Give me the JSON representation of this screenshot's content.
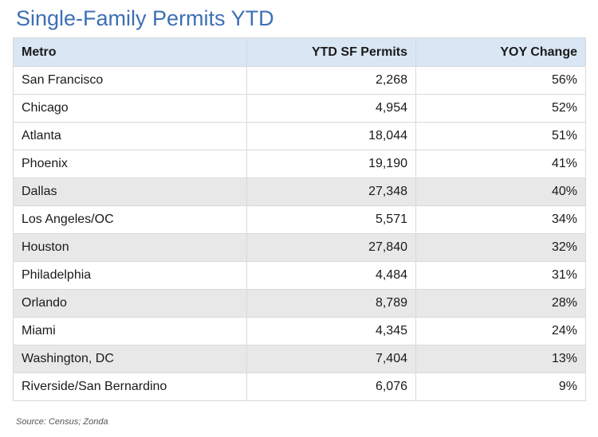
{
  "title": "Single-Family Permits YTD",
  "source": "Source: Census; Zonda",
  "colors": {
    "title": "#3d6fb6",
    "header_bg": "#d9e6f4",
    "shaded_row_bg": "#e8e8e8",
    "border": "#d9d9d9"
  },
  "chart_data": {
    "type": "table",
    "title": "Single-Family Permits YTD",
    "columns": [
      "Metro",
      "YTD SF Permits",
      "YOY Change"
    ],
    "rows": [
      {
        "metro": "San Francisco",
        "permits": "2,268",
        "yoy": "56%",
        "shaded": false
      },
      {
        "metro": "Chicago",
        "permits": "4,954",
        "yoy": "52%",
        "shaded": false
      },
      {
        "metro": "Atlanta",
        "permits": "18,044",
        "yoy": "51%",
        "shaded": false
      },
      {
        "metro": "Phoenix",
        "permits": "19,190",
        "yoy": "41%",
        "shaded": false
      },
      {
        "metro": "Dallas",
        "permits": "27,348",
        "yoy": "40%",
        "shaded": true
      },
      {
        "metro": "Los Angeles/OC",
        "permits": "5,571",
        "yoy": "34%",
        "shaded": false
      },
      {
        "metro": "Houston",
        "permits": "27,840",
        "yoy": "32%",
        "shaded": true
      },
      {
        "metro": "Philadelphia",
        "permits": "4,484",
        "yoy": "31%",
        "shaded": false
      },
      {
        "metro": "Orlando",
        "permits": "8,789",
        "yoy": "28%",
        "shaded": true
      },
      {
        "metro": "Miami",
        "permits": "4,345",
        "yoy": "24%",
        "shaded": false
      },
      {
        "metro": "Washington, DC",
        "permits": "7,404",
        "yoy": "13%",
        "shaded": true
      },
      {
        "metro": "Riverside/San Bernardino",
        "permits": "6,076",
        "yoy": "9%",
        "shaded": false
      }
    ]
  }
}
